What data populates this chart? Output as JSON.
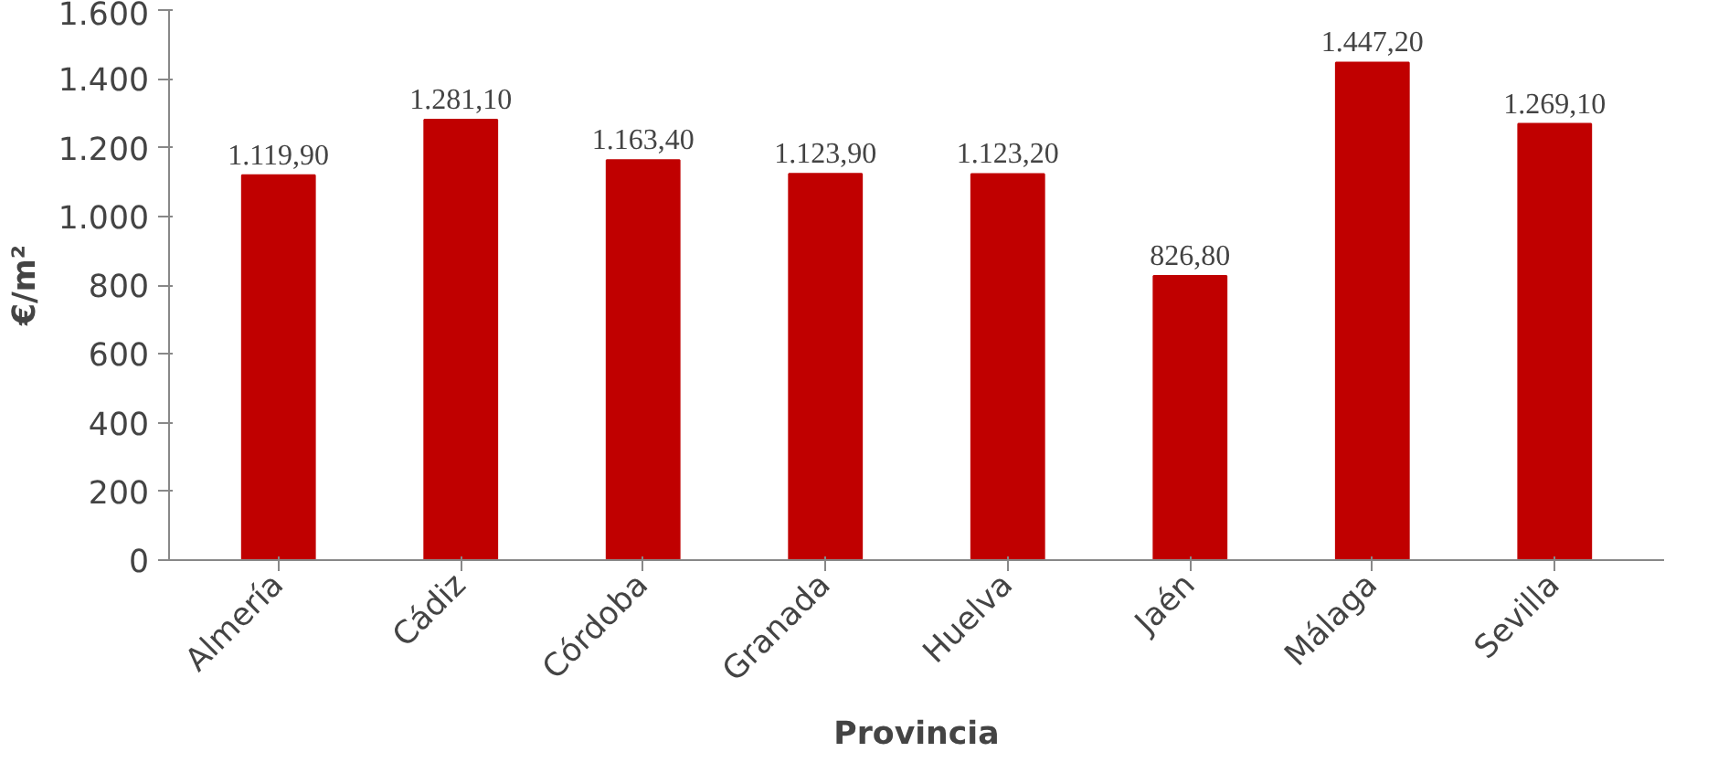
{
  "chart_data": {
    "type": "bar",
    "xlabel": "Provincia",
    "ylabel": "€/m²",
    "categories": [
      "Almería",
      "Cádiz",
      "Córdoba",
      "Granada",
      "Huelva",
      "Jaén",
      "Málaga",
      "Sevilla"
    ],
    "values": [
      1119.9,
      1281.1,
      1163.4,
      1123.9,
      1123.2,
      826.8,
      1447.2,
      1269.1
    ],
    "value_labels": [
      "1.119,90",
      "1.281,10",
      "1.163,40",
      "1.123,90",
      "1.123,20",
      "826,80",
      "1.447,20",
      "1.269,10"
    ],
    "color": "#c00000",
    "ylim": [
      0,
      1600
    ],
    "yticks": [
      0,
      200,
      400,
      600,
      800,
      {
        "value": 1000,
        "label": "1.000"
      },
      {
        "value": 1200,
        "label": "1.200"
      },
      {
        "value": 1400,
        "label": "1.400"
      },
      {
        "value": 1600,
        "label": "1.600"
      }
    ],
    "grid": false
  }
}
